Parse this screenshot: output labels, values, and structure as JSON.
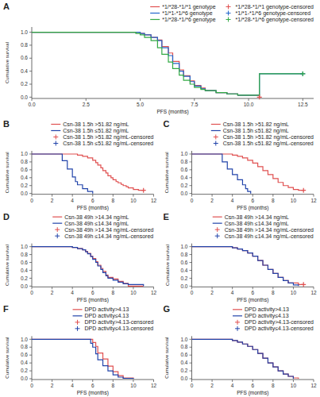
{
  "chart_data": [
    {
      "type": "step",
      "title": "A",
      "xlabel": "PFS (months)",
      "ylabel": "Cumulative survival",
      "xlim": [
        0,
        13
      ],
      "xticks": [
        {
          "value": 0,
          "label": "0.0"
        },
        2.5,
        {
          "value": 5,
          "label": "5.0"
        },
        7.5,
        {
          "value": 10,
          "label": "10.0"
        },
        12.5
      ],
      "ylim": [
        -0.02,
        1.08
      ],
      "yticks": [
        {
          "value": 0,
          "label": "0.0"
        },
        0.2,
        0.4,
        0.6,
        0.8,
        {
          "value": 1,
          "label": "1.0"
        }
      ],
      "grid": false,
      "legend": "upper right",
      "series": [
        {
          "name": "*1/*28-*1/*1 genotype",
          "color": "#e05050",
          "type": "step",
          "x": [
            0,
            4.8,
            5.0,
            5.2,
            5.5,
            5.8,
            6.0,
            6.3,
            6.5,
            6.8,
            7.0,
            7.3,
            7.5,
            7.8,
            8.0,
            8.5,
            9.0,
            9.5,
            10.0,
            10.5
          ],
          "values": [
            1.0,
            1.0,
            0.98,
            0.96,
            0.92,
            0.88,
            0.78,
            0.68,
            0.55,
            0.42,
            0.33,
            0.25,
            0.18,
            0.14,
            0.1,
            0.07,
            0.05,
            0.03,
            0.03,
            0.0
          ]
        },
        {
          "name": "*1/*1-*1/*6 genotype",
          "color": "#2266cc",
          "type": "step",
          "x": [
            0,
            4.8,
            5.0,
            5.2,
            5.5,
            5.8,
            6.0,
            6.3,
            6.5,
            6.8,
            7.0,
            7.3,
            7.5,
            7.8,
            8.0,
            8.5,
            9.0,
            9.5,
            10.5,
            12.5
          ],
          "values": [
            1.0,
            1.0,
            0.98,
            0.96,
            0.92,
            0.87,
            0.76,
            0.64,
            0.52,
            0.4,
            0.32,
            0.24,
            0.17,
            0.13,
            0.1,
            0.07,
            0.05,
            0.03,
            0.36,
            0.36
          ]
        },
        {
          "name": "*1/*28-*1/*6 genotype",
          "color": "#33aa44",
          "type": "step",
          "x": [
            0,
            4.5,
            4.8,
            5.0,
            5.2,
            5.5,
            5.8,
            6.0,
            6.3,
            6.5,
            6.8,
            7.0,
            7.3,
            7.5,
            7.8,
            8.0,
            8.5,
            9.0,
            9.5,
            10.5,
            12.5
          ],
          "values": [
            1.0,
            1.0,
            0.98,
            0.96,
            0.92,
            0.87,
            0.76,
            0.66,
            0.54,
            0.44,
            0.34,
            0.26,
            0.2,
            0.15,
            0.12,
            0.1,
            0.07,
            0.05,
            0.03,
            0.36,
            0.36
          ]
        },
        {
          "name": "*1/*28-*1/*1 genotype-censored",
          "color": "#e05050",
          "type": "scatter",
          "marker": "+",
          "x": [
            10.5
          ],
          "values": [
            0.0
          ]
        },
        {
          "name": "*1/*1-*1/*6 genotype-censored",
          "color": "#2266cc",
          "type": "scatter",
          "marker": "+",
          "x": [
            12.5
          ],
          "values": [
            0.36
          ]
        },
        {
          "name": "*1/*28-*1/*6 genotype-censored",
          "color": "#33aa44",
          "type": "scatter",
          "marker": "+",
          "x": [
            12.5
          ],
          "values": [
            0.36
          ]
        }
      ]
    },
    {
      "type": "step",
      "title": "B",
      "xlabel": "PFS (months)",
      "ylabel": "Cumulative survival",
      "xlim": [
        0,
        12
      ],
      "xticks": [
        0,
        2,
        4,
        6,
        8,
        10,
        12
      ],
      "ylim": [
        -0.02,
        1.08
      ],
      "yticks": [
        {
          "value": 0,
          "label": "0.0"
        },
        0.2,
        0.4,
        0.6,
        0.8,
        {
          "value": 1,
          "label": "1.0"
        }
      ],
      "grid": false,
      "legend": "upper right",
      "series": [
        {
          "name": "Csn-38 1.5h >51.82 ng/mL",
          "color": "#e05050",
          "type": "step",
          "x": [
            0,
            3.8,
            4.5,
            5.0,
            5.5,
            6.0,
            6.3,
            6.5,
            6.8,
            7.0,
            7.3,
            7.5,
            7.8,
            8.0,
            8.3,
            8.5,
            8.8,
            9.0,
            9.3,
            9.5,
            10.0,
            10.5,
            11.0
          ],
          "values": [
            1.0,
            1.0,
            0.97,
            0.94,
            0.9,
            0.84,
            0.78,
            0.72,
            0.65,
            0.58,
            0.52,
            0.45,
            0.4,
            0.35,
            0.3,
            0.27,
            0.23,
            0.2,
            0.17,
            0.14,
            0.1,
            0.08,
            0.08
          ]
        },
        {
          "name": "Csn-38 1.5h ≤51.82 ng/mL",
          "color": "#2244aa",
          "type": "step",
          "x": [
            0,
            2.8,
            3.0,
            3.5,
            4.0,
            4.3,
            4.5,
            5.0,
            5.5,
            6.0
          ],
          "values": [
            1.0,
            1.0,
            0.83,
            0.62,
            0.42,
            0.3,
            0.22,
            0.12,
            0.05,
            0.0
          ]
        },
        {
          "name": "Csn-38 1.5h >51.82 ng/mL-censored",
          "color": "#e05050",
          "type": "scatter",
          "marker": "+",
          "x": [
            11.0
          ],
          "values": [
            0.08
          ]
        },
        {
          "name": "Csn-38 1.5h ≤51.82 ng/mL-censored",
          "color": "#2244aa",
          "type": "scatter",
          "marker": "+",
          "x": [],
          "values": []
        }
      ]
    },
    {
      "type": "step",
      "title": "C",
      "xlabel": "PFS (months)",
      "ylabel": "Cumulative survival",
      "xlim": [
        0,
        12
      ],
      "xticks": [
        0,
        2,
        4,
        6,
        8,
        10,
        12
      ],
      "ylim": [
        -0.02,
        1.08
      ],
      "yticks": [
        {
          "value": 0,
          "label": "0.0"
        },
        0.2,
        0.4,
        0.6,
        0.8,
        {
          "value": 1,
          "label": "1.0"
        }
      ],
      "grid": false,
      "legend": "upper right",
      "series": [
        {
          "name": "Csn-38 1.5h >51.82 ng/mL",
          "color": "#e05050",
          "type": "step",
          "x": [
            0,
            3.5,
            4.0,
            4.5,
            5.0,
            5.5,
            6.0,
            6.5,
            7.0,
            7.5,
            8.0,
            8.5,
            9.0,
            9.5,
            10.0,
            10.5,
            11.0
          ],
          "values": [
            1.0,
            1.0,
            0.97,
            0.94,
            0.9,
            0.84,
            0.77,
            0.68,
            0.58,
            0.48,
            0.38,
            0.28,
            0.2,
            0.15,
            0.1,
            0.08,
            0.08
          ]
        },
        {
          "name": "Csn-38 1.5h ≤51.82 ng/mL",
          "color": "#2244aa",
          "type": "step",
          "x": [
            0,
            2.5,
            3.0,
            3.5,
            4.0,
            4.5,
            5.0,
            5.3,
            5.5,
            5.8
          ],
          "values": [
            1.0,
            1.0,
            0.8,
            0.62,
            0.48,
            0.35,
            0.22,
            0.12,
            0.05,
            0.0
          ]
        },
        {
          "name": "Csn-38 1.5h >51.82 ng/mL-censored",
          "color": "#e05050",
          "type": "scatter",
          "marker": "+",
          "x": [
            11.0
          ],
          "values": [
            0.08
          ]
        },
        {
          "name": "Csn-38 1.5h ≤51.82 ng/mL-censored",
          "color": "#2244aa",
          "type": "scatter",
          "marker": "+",
          "x": [],
          "values": []
        }
      ]
    },
    {
      "type": "step",
      "title": "D",
      "xlabel": "PFS (months)",
      "ylabel": "Cumulative survival",
      "xlim": [
        0,
        12
      ],
      "xticks": [
        0,
        2,
        4,
        6,
        8,
        10,
        12
      ],
      "ylim": [
        -0.02,
        1.08
      ],
      "yticks": [
        {
          "value": 0,
          "label": "0.0"
        },
        0.2,
        0.4,
        0.6,
        0.8,
        {
          "value": 1,
          "label": "1.0"
        }
      ],
      "grid": false,
      "legend": "upper right",
      "series": [
        {
          "name": "Csn-38 49h >14.34 ng/mL",
          "color": "#e05050",
          "type": "step",
          "x": [
            0,
            3.5,
            4.0,
            4.5,
            5.0,
            5.3,
            5.5,
            5.8,
            6.0,
            6.3,
            6.5,
            6.8,
            7.0,
            7.3,
            7.5,
            8.0,
            8.5,
            9.0,
            9.5,
            11.0
          ],
          "values": [
            1.0,
            1.0,
            0.98,
            0.95,
            0.92,
            0.88,
            0.83,
            0.76,
            0.7,
            0.62,
            0.53,
            0.45,
            0.37,
            0.28,
            0.22,
            0.18,
            0.12,
            0.07,
            0.0,
            0.0
          ]
        },
        {
          "name": "Csn-38 49h ≤14.34 ng/mL",
          "color": "#2244aa",
          "type": "step",
          "x": [
            0,
            3.5,
            4.0,
            4.5,
            5.0,
            5.3,
            5.5,
            5.8,
            6.0,
            6.3,
            6.5,
            6.8,
            7.0,
            7.3,
            7.5,
            8.0,
            8.5,
            9.0,
            9.5,
            10.5,
            11.0
          ],
          "values": [
            1.0,
            1.0,
            0.98,
            0.95,
            0.92,
            0.87,
            0.82,
            0.75,
            0.68,
            0.6,
            0.51,
            0.42,
            0.34,
            0.26,
            0.2,
            0.15,
            0.1,
            0.06,
            0.04,
            0.04,
            0.0
          ]
        },
        {
          "name": "Csn-38 49h >14.34 ng/mL-censored",
          "color": "#e05050",
          "type": "scatter",
          "marker": "+",
          "x": [],
          "values": []
        },
        {
          "name": "Csn-38 49h ≤14.34 ng/mL-censored",
          "color": "#2244aa",
          "type": "scatter",
          "marker": "+",
          "x": [],
          "values": []
        }
      ]
    },
    {
      "type": "step",
      "title": "E",
      "xlabel": "PFS (months)",
      "ylabel": "Cumulative survival",
      "xlim": [
        0,
        12
      ],
      "xticks": [
        0,
        2,
        4,
        6,
        8,
        10,
        12
      ],
      "ylim": [
        -0.02,
        1.08
      ],
      "yticks": [
        {
          "value": 0,
          "label": "0.0"
        },
        0.2,
        0.4,
        0.6,
        0.8,
        {
          "value": 1,
          "label": "1.0"
        }
      ],
      "grid": false,
      "legend": "upper right",
      "series": [
        {
          "name": "Csn-38 49h >14.34 ng/mL",
          "color": "#e05050",
          "type": "step",
          "x": [
            0,
            3.5,
            4.0,
            4.5,
            5.0,
            5.5,
            6.0,
            6.5,
            7.0,
            7.5,
            8.0,
            8.5,
            9.0,
            9.5,
            10.5,
            11.0
          ],
          "values": [
            1.0,
            1.0,
            0.97,
            0.94,
            0.9,
            0.84,
            0.76,
            0.65,
            0.53,
            0.42,
            0.32,
            0.22,
            0.14,
            0.08,
            0.04,
            0.04
          ]
        },
        {
          "name": "Csn-38 49h ≤14.34 ng/mL",
          "color": "#2244aa",
          "type": "step",
          "x": [
            0,
            3.5,
            4.0,
            4.5,
            5.0,
            5.5,
            6.0,
            6.5,
            7.0,
            7.5,
            8.0,
            8.5,
            9.0,
            9.5,
            10.0,
            10.5
          ],
          "values": [
            1.0,
            1.0,
            0.97,
            0.94,
            0.9,
            0.84,
            0.76,
            0.65,
            0.53,
            0.42,
            0.32,
            0.22,
            0.14,
            0.08,
            0.03,
            0.0
          ]
        },
        {
          "name": "Csn-38 49h >14.34 ng/mL-censored",
          "color": "#e05050",
          "type": "scatter",
          "marker": "+",
          "x": [
            11.0
          ],
          "values": [
            0.04
          ]
        },
        {
          "name": "Csn-38 49h ≤14.34 ng/mL-censored",
          "color": "#2244aa",
          "type": "scatter",
          "marker": "+",
          "x": [],
          "values": []
        }
      ]
    },
    {
      "type": "step",
      "title": "F",
      "xlabel": "PFS (months)",
      "ylabel": "Cumulative survival",
      "xlim": [
        0,
        12
      ],
      "xticks": [
        0,
        2,
        4,
        6,
        8,
        10,
        12
      ],
      "ylim": [
        -0.02,
        1.08
      ],
      "yticks": [
        {
          "value": 0,
          "label": "0.0"
        },
        0.2,
        0.4,
        0.6,
        0.8,
        {
          "value": 1,
          "label": "1.0"
        }
      ],
      "grid": false,
      "legend": "upper right",
      "series": [
        {
          "name": "DPD activity>4.13",
          "color": "#e05050",
          "type": "step",
          "x": [
            0,
            5.5,
            6.0,
            6.3,
            6.5,
            7.0,
            7.5,
            8.0,
            8.5,
            9.0,
            10.0
          ],
          "values": [
            1.0,
            1.0,
            0.92,
            0.82,
            0.65,
            0.5,
            0.32,
            0.18,
            0.08,
            0.02,
            0.0
          ]
        },
        {
          "name": "DPD activity≤4.13",
          "color": "#2244aa",
          "type": "step",
          "x": [
            0,
            5.5,
            5.8,
            6.0,
            6.3,
            6.5,
            7.0,
            7.5,
            8.0,
            8.5,
            9.0,
            10.0
          ],
          "values": [
            1.0,
            1.0,
            0.9,
            0.8,
            0.63,
            0.48,
            0.33,
            0.2,
            0.1,
            0.04,
            0.01,
            0.0
          ]
        },
        {
          "name": "DPD activity>4.13-censored",
          "color": "#e05050",
          "type": "scatter",
          "marker": "+",
          "x": [],
          "values": []
        },
        {
          "name": "DPD activity≤4.13-censored",
          "color": "#2244aa",
          "type": "scatter",
          "marker": "+",
          "x": [],
          "values": []
        }
      ]
    },
    {
      "type": "step",
      "title": "G",
      "xlabel": "PFS (months)",
      "ylabel": "Cumulative survival",
      "xlim": [
        0,
        12
      ],
      "xticks": [
        0,
        2,
        4,
        6,
        8,
        10,
        12
      ],
      "ylim": [
        -0.02,
        1.08
      ],
      "yticks": [
        {
          "value": 0,
          "label": "0.0"
        },
        0.2,
        0.4,
        0.6,
        0.8,
        {
          "value": 1,
          "label": "1.0"
        }
      ],
      "grid": false,
      "legend": "upper right",
      "series": [
        {
          "name": "DPD activity>4.13",
          "color": "#e05050",
          "type": "step",
          "x": [
            0,
            3.5,
            4.0,
            4.5,
            5.0,
            5.5,
            6.0,
            6.5,
            7.0,
            7.5,
            8.0,
            8.5,
            9.0,
            9.5,
            10.0,
            10.5
          ],
          "values": [
            1.0,
            1.0,
            0.97,
            0.93,
            0.88,
            0.82,
            0.74,
            0.64,
            0.52,
            0.4,
            0.3,
            0.2,
            0.12,
            0.06,
            0.02,
            0.0
          ]
        },
        {
          "name": "DPD activity≤4.13",
          "color": "#2244aa",
          "type": "step",
          "x": [
            0,
            3.5,
            4.0,
            4.5,
            5.0,
            5.5,
            6.0,
            6.5,
            7.0,
            7.5,
            8.0,
            8.5,
            9.0,
            9.5,
            10.0
          ],
          "values": [
            1.0,
            1.0,
            0.97,
            0.93,
            0.88,
            0.82,
            0.74,
            0.64,
            0.52,
            0.4,
            0.3,
            0.2,
            0.12,
            0.06,
            0.0
          ]
        },
        {
          "name": "DPD activity>4.13-censored",
          "color": "#e05050",
          "type": "scatter",
          "marker": "+",
          "x": [],
          "values": []
        },
        {
          "name": "DPD activity≤4.13-censored",
          "color": "#2244aa",
          "type": "scatter",
          "marker": "+",
          "x": [],
          "values": []
        }
      ]
    }
  ]
}
